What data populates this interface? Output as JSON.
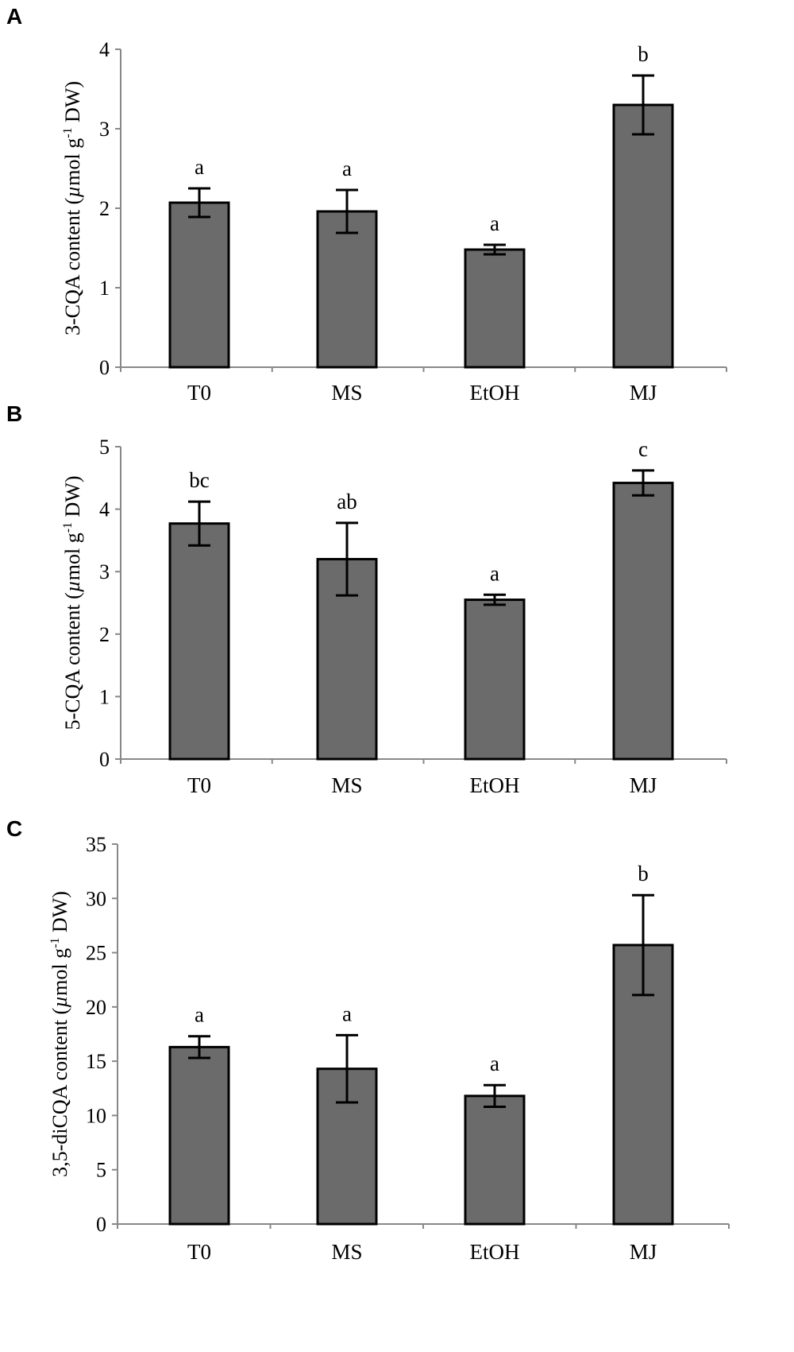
{
  "chart_data": [
    {
      "panel": "A",
      "type": "bar",
      "categories": [
        "T0",
        "MS",
        "EtOH",
        "MJ"
      ],
      "values": [
        2.07,
        1.96,
        1.48,
        3.3
      ],
      "errors": [
        0.18,
        0.27,
        0.06,
        0.37
      ],
      "significance": [
        "a",
        "a",
        "a",
        "b"
      ],
      "ylabel": {
        "prefix": "3-CQA content (",
        "mu": "µ",
        "unit": "mol g",
        "sup": "-1",
        "suffix": " DW)"
      },
      "ylim": [
        0,
        4
      ],
      "yticks": [
        0,
        1,
        2,
        3,
        4
      ]
    },
    {
      "panel": "B",
      "type": "bar",
      "categories": [
        "T0",
        "MS",
        "EtOH",
        "MJ"
      ],
      "values": [
        3.77,
        3.2,
        2.55,
        4.42
      ],
      "errors": [
        0.35,
        0.58,
        0.08,
        0.2
      ],
      "significance": [
        "bc",
        "ab",
        "a",
        "c"
      ],
      "ylabel": {
        "prefix": "5-CQA content (",
        "mu": "µ",
        "unit": "mol g",
        "sup": "-1",
        "suffix": " DW)"
      },
      "ylim": [
        0,
        5
      ],
      "yticks": [
        0,
        1,
        2,
        3,
        4,
        5
      ]
    },
    {
      "panel": "C",
      "type": "bar",
      "categories": [
        "T0",
        "MS",
        "EtOH",
        "MJ"
      ],
      "values": [
        16.3,
        14.3,
        11.8,
        25.7
      ],
      "errors": [
        1.0,
        3.1,
        1.0,
        4.6
      ],
      "significance": [
        "a",
        "a",
        "a",
        "b"
      ],
      "ylabel": {
        "prefix": "3,5-diCQA content (",
        "mu": "µ",
        "unit": "mol g",
        "sup": "-1",
        "suffix": " DW)"
      },
      "ylim": [
        0,
        35
      ],
      "yticks": [
        0,
        5,
        10,
        15,
        20,
        25,
        30,
        35
      ]
    }
  ],
  "colors": {
    "bar_fill": "#6b6b6b",
    "bar_stroke": "#000000",
    "axis": "#888888"
  }
}
